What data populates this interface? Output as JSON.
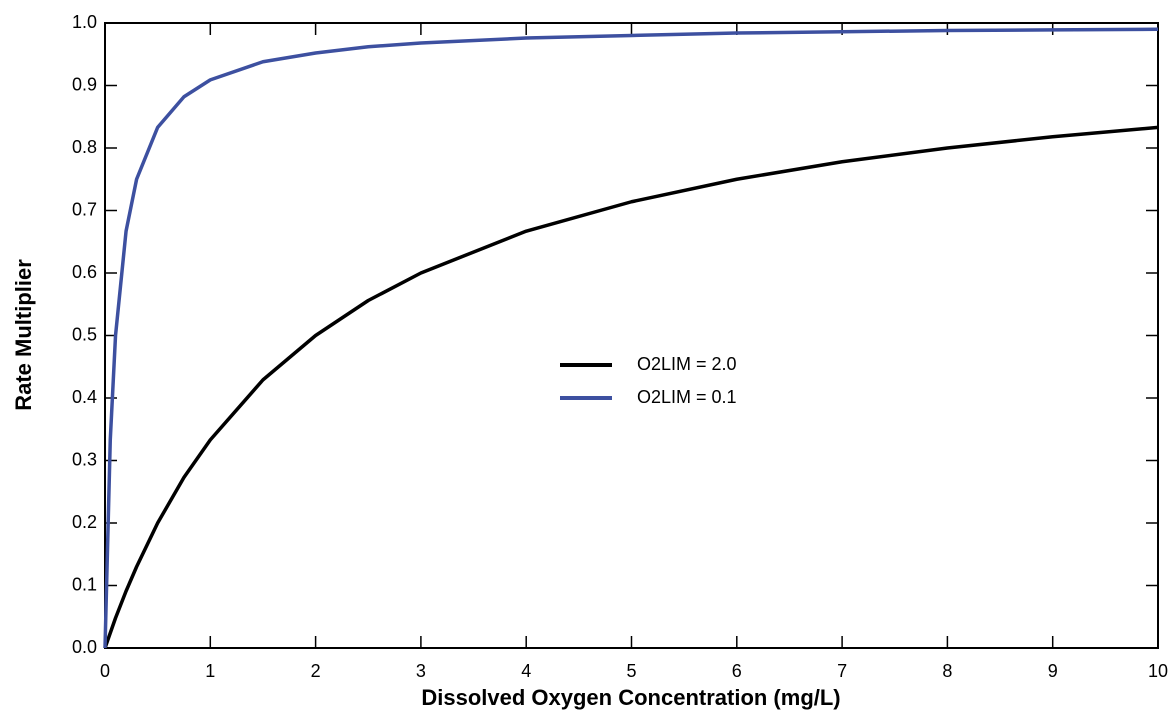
{
  "chart_data": {
    "type": "line",
    "x_label": "Dissolved Oxygen Concentration (mg/L)",
    "y_label": "Rate Multiplier",
    "x": [
      0,
      0.05,
      0.1,
      0.2,
      0.3,
      0.5,
      0.75,
      1,
      1.5,
      2,
      2.5,
      3,
      4,
      5,
      6,
      7,
      8,
      9,
      10
    ],
    "series": [
      {
        "name": "O2LIM = 2.0",
        "color": "#000000",
        "values": [
          0,
          0.024,
          0.048,
          0.091,
          0.13,
          0.2,
          0.273,
          0.333,
          0.429,
          0.5,
          0.556,
          0.6,
          0.667,
          0.714,
          0.75,
          0.778,
          0.8,
          0.818,
          0.833
        ]
      },
      {
        "name": "O2LIM = 0.1",
        "color": "#3d50a0",
        "values": [
          0,
          0.333,
          0.5,
          0.667,
          0.75,
          0.833,
          0.882,
          0.909,
          0.938,
          0.952,
          0.962,
          0.968,
          0.976,
          0.98,
          0.984,
          0.986,
          0.988,
          0.989,
          0.99
        ]
      }
    ],
    "xlim": [
      0,
      10
    ],
    "ylim": [
      0,
      1
    ],
    "xticks": [
      0,
      1,
      2,
      3,
      4,
      5,
      6,
      7,
      8,
      9,
      10
    ],
    "yticks": [
      {
        "value": 0,
        "label": "0.0"
      },
      0.1,
      0.2,
      0.3,
      0.4,
      0.5,
      0.6,
      0.7,
      0.8,
      0.9,
      {
        "value": 1,
        "label": "1.0"
      }
    ],
    "grid": false
  }
}
